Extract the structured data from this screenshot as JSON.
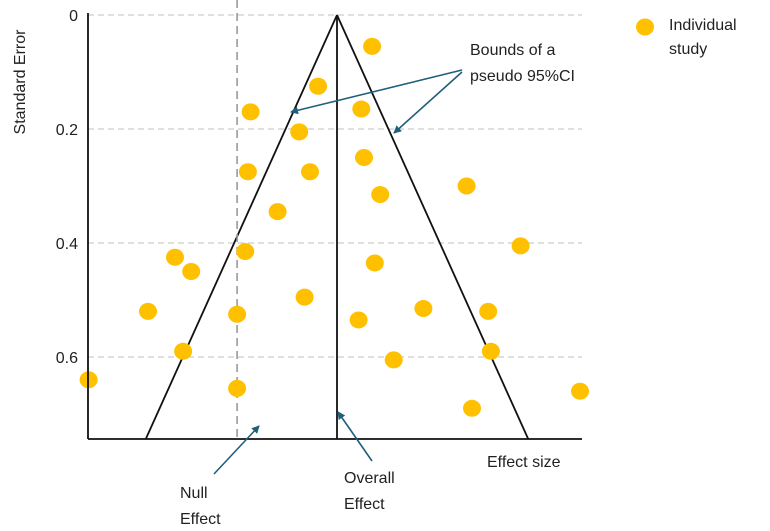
{
  "chart_data": {
    "type": "scatter",
    "title": "",
    "xlabel": "Effect size",
    "ylabel": "Standard Error",
    "y_ticks": [
      "0",
      "0.2",
      "0.4",
      "0.6"
    ],
    "y_tick_values": [
      0,
      0.2,
      0.4,
      0.6
    ],
    "ylim": [
      0,
      0.745
    ],
    "y_inverted": true,
    "grid": "horizontal dashed",
    "x_ticks_shown": false,
    "legend": {
      "label": "Individual study",
      "placement": "top-right"
    },
    "colors": {
      "points": "#FFC000",
      "funnel": "#111111",
      "null_line": "#999999",
      "arrows": "#1F5F7A"
    },
    "overall_effect": 0.0,
    "null_effect": -0.37,
    "funnel_half_width_per_se": 1.96,
    "annotations": {
      "bounds": [
        "Bounds of a",
        "pseudo 95%CI"
      ],
      "null": [
        "Null",
        "Effect"
      ],
      "overall": [
        "Overall",
        "Effect"
      ]
    },
    "points": [
      {
        "x": 0.13,
        "y": 0.055
      },
      {
        "x": -0.07,
        "y": 0.125
      },
      {
        "x": -0.32,
        "y": 0.17
      },
      {
        "x": 0.09,
        "y": 0.165
      },
      {
        "x": -0.14,
        "y": 0.205
      },
      {
        "x": 0.1,
        "y": 0.25
      },
      {
        "x": -0.33,
        "y": 0.275
      },
      {
        "x": -0.1,
        "y": 0.275
      },
      {
        "x": 0.16,
        "y": 0.315
      },
      {
        "x": 0.48,
        "y": 0.3
      },
      {
        "x": -0.22,
        "y": 0.345
      },
      {
        "x": 0.68,
        "y": 0.405
      },
      {
        "x": -0.34,
        "y": 0.415
      },
      {
        "x": -0.6,
        "y": 0.425
      },
      {
        "x": -0.54,
        "y": 0.45
      },
      {
        "x": 0.14,
        "y": 0.435
      },
      {
        "x": -0.12,
        "y": 0.495
      },
      {
        "x": -0.7,
        "y": 0.52
      },
      {
        "x": -0.37,
        "y": 0.525
      },
      {
        "x": 0.08,
        "y": 0.535
      },
      {
        "x": 0.32,
        "y": 0.515
      },
      {
        "x": 0.56,
        "y": 0.52
      },
      {
        "x": -0.57,
        "y": 0.59
      },
      {
        "x": 0.21,
        "y": 0.605
      },
      {
        "x": 0.57,
        "y": 0.59
      },
      {
        "x": -0.92,
        "y": 0.64
      },
      {
        "x": -0.37,
        "y": 0.655
      },
      {
        "x": 0.9,
        "y": 0.66
      },
      {
        "x": 0.5,
        "y": 0.69
      }
    ]
  }
}
